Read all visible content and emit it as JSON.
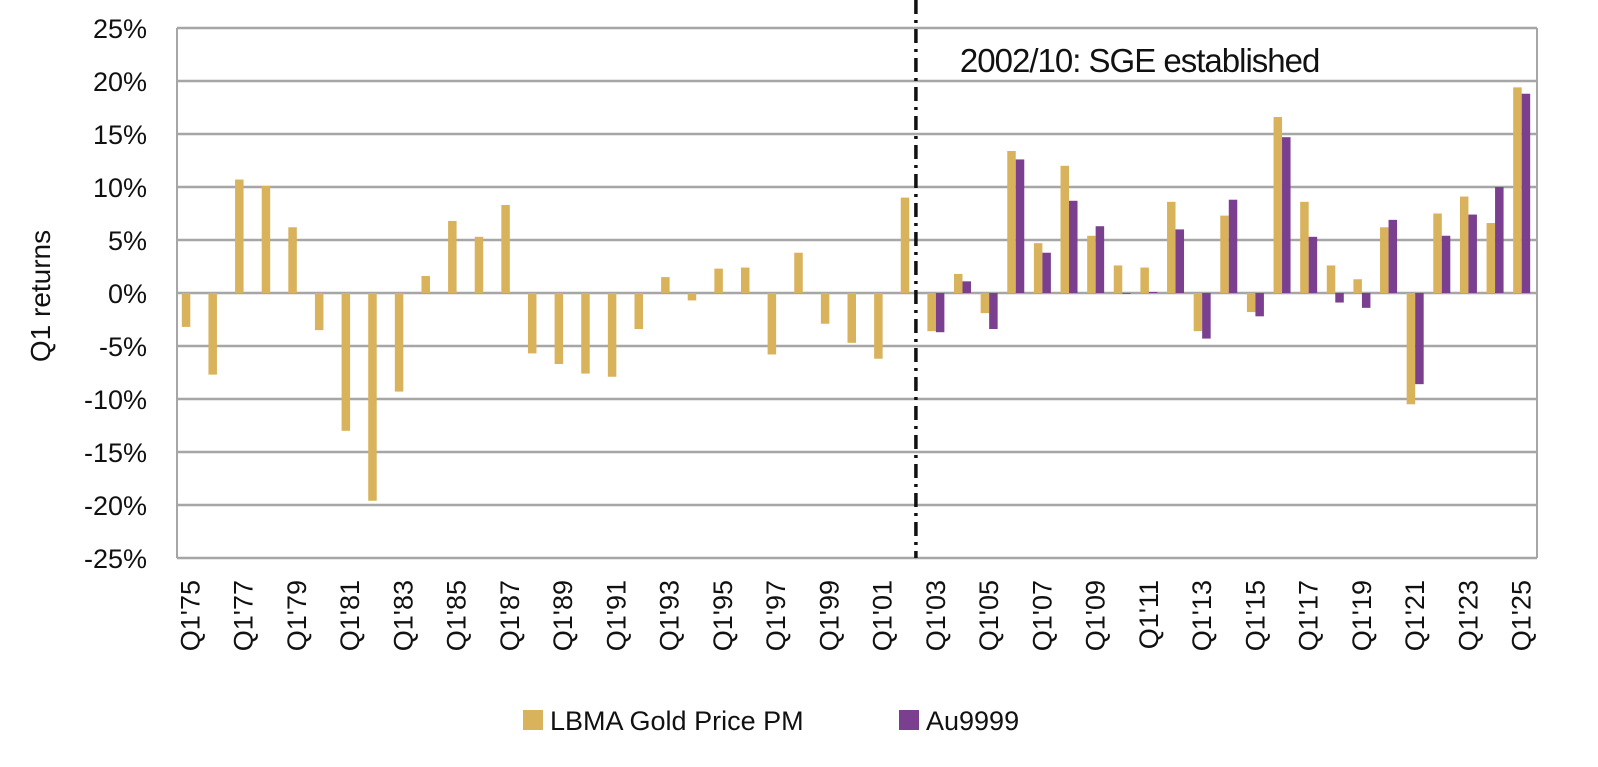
{
  "chart_data": {
    "type": "bar",
    "ylabel": "Q1 returns",
    "xlabel": "",
    "ylim": [
      -25,
      25
    ],
    "y_ticks": [
      25,
      20,
      15,
      10,
      5,
      0,
      -5,
      -10,
      -15,
      -20,
      -25
    ],
    "y_tick_labels": [
      "25%",
      "20%",
      "15%",
      "10%",
      "5%",
      "0%",
      "-5%",
      "-10%",
      "-15%",
      "-20%",
      "-25%"
    ],
    "grid": true,
    "legend_position": "bottom-center",
    "categories": [
      "Q1'75",
      "Q1'76",
      "Q1'77",
      "Q1'78",
      "Q1'79",
      "Q1'80",
      "Q1'81",
      "Q1'82",
      "Q1'83",
      "Q1'84",
      "Q1'85",
      "Q1'86",
      "Q1'87",
      "Q1'88",
      "Q1'89",
      "Q1'90",
      "Q1'91",
      "Q1'92",
      "Q1'93",
      "Q1'94",
      "Q1'95",
      "Q1'96",
      "Q1'97",
      "Q1'98",
      "Q1'99",
      "Q1'00",
      "Q1'01",
      "Q1'02",
      "Q1'03",
      "Q1'04",
      "Q1'05",
      "Q1'06",
      "Q1'07",
      "Q1'08",
      "Q1'09",
      "Q1'10",
      "Q1'11",
      "Q1'12",
      "Q1'13",
      "Q1'14",
      "Q1'15",
      "Q1'16",
      "Q1'17",
      "Q1'18",
      "Q1'19",
      "Q1'20",
      "Q1'21",
      "Q1'22",
      "Q1'23",
      "Q1'24",
      "Q1'25"
    ],
    "x_tick_labels": [
      "Q1'75",
      "Q1'77",
      "Q1'79",
      "Q1'81",
      "Q1'83",
      "Q1'85",
      "Q1'87",
      "Q1'89",
      "Q1'91",
      "Q1'93",
      "Q1'95",
      "Q1'97",
      "Q1'99",
      "Q1'01",
      "Q1'03",
      "Q1'05",
      "Q1'07",
      "Q1'09",
      "Q1'11",
      "Q1'13",
      "Q1'15",
      "Q1'17",
      "Q1'19",
      "Q1'21",
      "Q1'23",
      "Q1'25"
    ],
    "series": [
      {
        "name": "LBMA Gold Price PM",
        "color": "#d9b25c",
        "values": [
          -3.2,
          -7.7,
          10.7,
          10.1,
          6.2,
          -3.5,
          -13.0,
          -19.6,
          -9.3,
          1.6,
          6.8,
          5.3,
          8.3,
          -5.7,
          -6.7,
          -7.6,
          -7.9,
          -3.4,
          1.5,
          -0.7,
          2.3,
          2.4,
          -5.8,
          3.8,
          -2.9,
          -4.7,
          -6.2,
          9.0,
          -3.6,
          1.8,
          -1.9,
          13.4,
          4.7,
          12.0,
          5.4,
          2.6,
          2.4,
          8.6,
          -3.6,
          7.3,
          -1.8,
          16.6,
          8.6,
          2.6,
          1.3,
          6.2,
          -10.5,
          7.5,
          9.1,
          6.6,
          19.4
        ]
      },
      {
        "name": "Au9999",
        "color": "#7a3f8f",
        "values": [
          null,
          null,
          null,
          null,
          null,
          null,
          null,
          null,
          null,
          null,
          null,
          null,
          null,
          null,
          null,
          null,
          null,
          null,
          null,
          null,
          null,
          null,
          null,
          null,
          null,
          null,
          null,
          null,
          -3.7,
          1.1,
          -3.4,
          12.6,
          3.8,
          8.7,
          6.3,
          0.0,
          0.1,
          6.0,
          -4.3,
          8.8,
          -2.2,
          14.7,
          5.3,
          -0.9,
          -1.4,
          6.9,
          -8.6,
          5.4,
          7.4,
          10.0,
          18.8
        ]
      }
    ],
    "annotation": {
      "text": "2002/10: SGE established",
      "at_category_position": 27.75,
      "style": "dash-dot vertical line"
    }
  },
  "legend": {
    "items": [
      {
        "label": "LBMA Gold Price PM",
        "color": "#d9b25c"
      },
      {
        "label": "Au9999",
        "color": "#7a3f8f"
      }
    ]
  }
}
